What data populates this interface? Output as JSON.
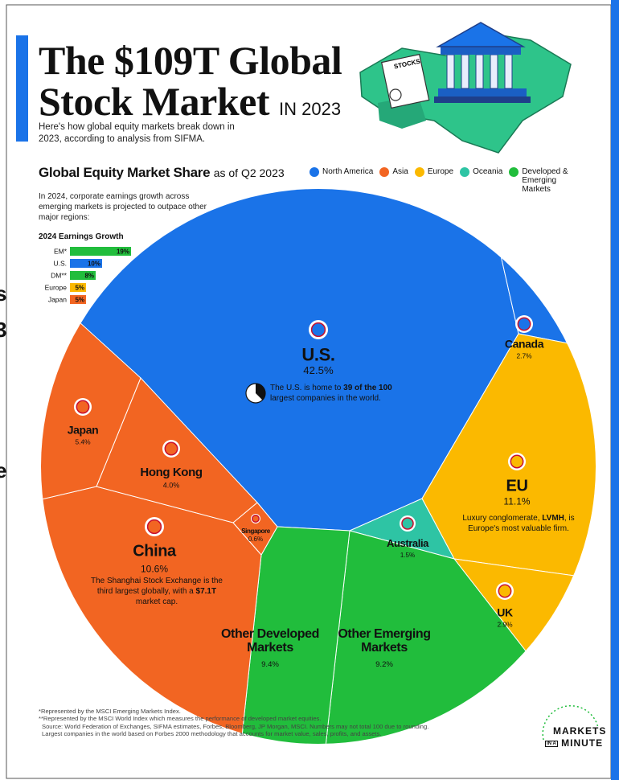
{
  "edge_fragments": [
    "s",
    "3",
    "e"
  ],
  "header": {
    "title_line1": "The $109T Global",
    "title_line2": "Stock Market",
    "title_suffix": "IN 2023",
    "subtitle": "Here's how global equity markets break down in 2023, according to analysis from SIFMA.",
    "illustration_label": "STOCKS"
  },
  "chart_data": [
    {
      "type": "voronoi",
      "title": "Global Equity Market Share",
      "subtitle": "as of Q2 2023",
      "legend": [
        {
          "name": "North America",
          "color": "#1a73e8"
        },
        {
          "name": "Asia",
          "color": "#f26522"
        },
        {
          "name": "Europe",
          "color": "#fbb900"
        },
        {
          "name": "Oceania",
          "color": "#2ec4a4"
        },
        {
          "name": "Developed & Emerging Markets",
          "color": "#21bd3c"
        }
      ],
      "categories": [
        "U.S.",
        "Canada",
        "EU",
        "UK",
        "Australia",
        "Other Emerging Markets",
        "Other Developed Markets",
        "China",
        "Singapore",
        "Hong Kong",
        "Japan"
      ],
      "values": [
        42.5,
        2.7,
        11.1,
        2.9,
        1.5,
        9.2,
        9.4,
        10.6,
        0.6,
        4.0,
        5.4
      ],
      "value_labels": [
        "42.5%",
        "2.7%",
        "11.1%",
        "2.9%",
        "1.5%",
        "9.2%",
        "9.4%",
        "10.6%",
        "0.6%",
        "4.0%",
        "5.4%"
      ],
      "colors": [
        "#1a73e8",
        "#1a73e8",
        "#fbb900",
        "#fbb900",
        "#2ec4a4",
        "#21bd3c",
        "#21bd3c",
        "#f26522",
        "#f26522",
        "#f26522",
        "#f26522"
      ],
      "us_note": [
        "The U.S. is home to ",
        "39 of the 100",
        " largest companies in the world."
      ],
      "eu_note": [
        "Luxury conglomerate, ",
        "LVMH",
        ", is Europe's most valuable firm."
      ],
      "china_note": [
        "The Shanghai Stock Exchange is the third largest globally, with a ",
        "$7.1T",
        " market cap."
      ]
    },
    {
      "type": "bar",
      "annotation": "In 2024, corporate earnings growth across emerging markets is projected to outpace other major regions:",
      "title": "2024 Earnings Growth",
      "categories": [
        "EM*",
        "U.S.",
        "DM**",
        "Europe",
        "Japan"
      ],
      "values": [
        19,
        10,
        8,
        5,
        5
      ],
      "value_labels": [
        "19%",
        "10%",
        "8%",
        "5%",
        "5%"
      ],
      "colors": [
        "#21bd3c",
        "#1a73e8",
        "#21bd3c",
        "#fbb900",
        "#f26522"
      ]
    }
  ],
  "footnotes": [
    "*Represented by the MSCI Emerging Markets Index.",
    "**Represented by the MSCI World Index which measures the performance of developed market equities.",
    "Source: World Federation of Exchanges, SIFMA estimates, Forbes, Bloomberg, JP Morgan, MSCI. Numbers may not total 100 due to rounding. Largest companies in the world based on Forbes 2000 methodology that accounts for market value, sales, profits, and assets."
  ],
  "logo": {
    "line1": "MARKETS",
    "line2_prefix": "IN A",
    "line2": "MINUTE"
  }
}
